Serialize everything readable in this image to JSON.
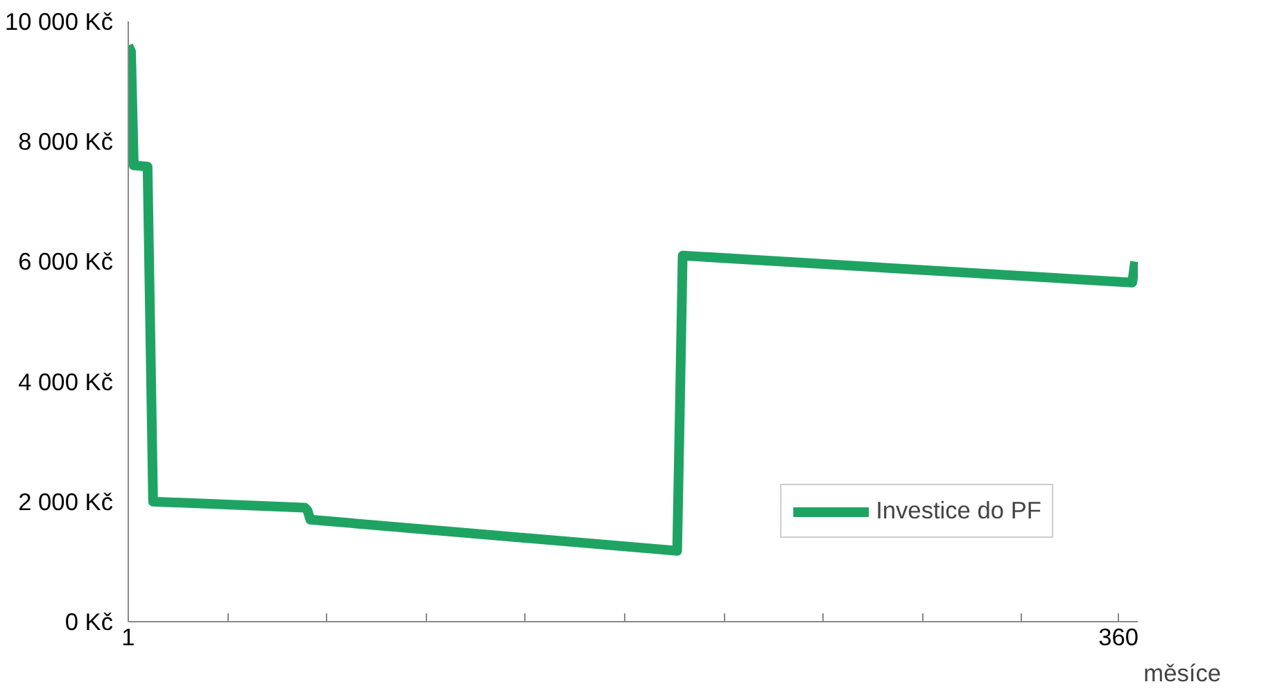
{
  "chart_data": {
    "type": "line",
    "xlabel": "měsíce",
    "x": [
      1,
      2,
      3,
      4,
      8,
      10,
      65,
      66,
      67,
      200,
      201,
      202,
      365,
      366
    ],
    "series": [
      {
        "name": "Investice do PF",
        "color": "#1fa363",
        "values": [
          9600,
          9500,
          7600,
          7600,
          7580,
          2000,
          1900,
          1850,
          1700,
          1180,
          3600,
          6100,
          5650,
          6000
        ]
      }
    ],
    "xlim": [
      1,
      367
    ],
    "xticks": [
      {
        "value": 1,
        "label": "1"
      },
      {
        "value": 37,
        "label": null
      },
      {
        "value": 73,
        "label": null
      },
      {
        "value": 109,
        "label": null
      },
      {
        "value": 145,
        "label": null
      },
      {
        "value": 181,
        "label": null
      },
      {
        "value": 217,
        "label": null
      },
      {
        "value": 253,
        "label": null
      },
      {
        "value": 289,
        "label": null
      },
      {
        "value": 325,
        "label": null
      },
      {
        "value": 360,
        "label": "360"
      }
    ],
    "ylim": [
      0,
      10000
    ],
    "yticks": [
      {
        "value": 0,
        "label": "0 Kč"
      },
      {
        "value": 2000,
        "label": "2 000 Kč"
      },
      {
        "value": 4000,
        "label": "4 000 Kč"
      },
      {
        "value": 6000,
        "label": "6 000 Kč"
      },
      {
        "value": 8000,
        "label": "8 000 Kč"
      },
      {
        "value": 10000,
        "label": "10 000 Kč"
      }
    ],
    "legend": "bottom right",
    "marker": "none",
    "line_style": "solid",
    "grid": false
  }
}
